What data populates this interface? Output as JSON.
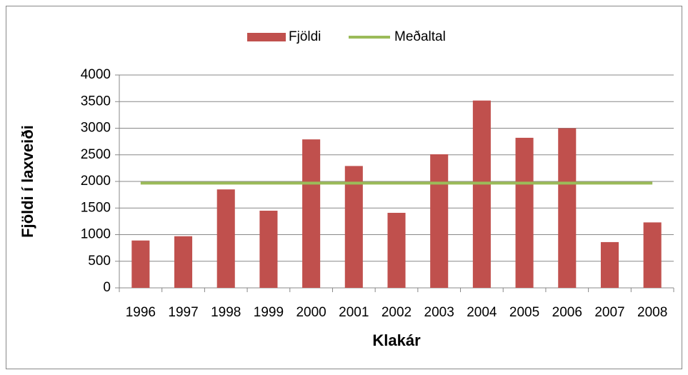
{
  "chart_data": {
    "type": "bar",
    "x_label": "Klakár",
    "y_label": "Fjöldi í laxveiði",
    "categories": [
      "1996",
      "1997",
      "1998",
      "1999",
      "2000",
      "2001",
      "2002",
      "2003",
      "2004",
      "2005",
      "2006",
      "2007",
      "2008"
    ],
    "series": [
      {
        "name": "Fjöldi",
        "type": "bar",
        "color": "#c0504d",
        "values": [
          890,
          970,
          1850,
          1450,
          2790,
          2290,
          1410,
          2510,
          3520,
          2820,
          3000,
          860,
          1230
        ]
      },
      {
        "name": "Meðaltal",
        "type": "line",
        "color": "#9bbb59",
        "values": [
          1968,
          1968,
          1968,
          1968,
          1968,
          1968,
          1968,
          1968,
          1968,
          1968,
          1968,
          1968,
          1968
        ]
      }
    ],
    "ylim": [
      0,
      4000
    ],
    "yticks": [
      0,
      500,
      1000,
      1500,
      2000,
      2500,
      3000,
      3500,
      4000
    ],
    "grid": true,
    "legend": "top"
  }
}
